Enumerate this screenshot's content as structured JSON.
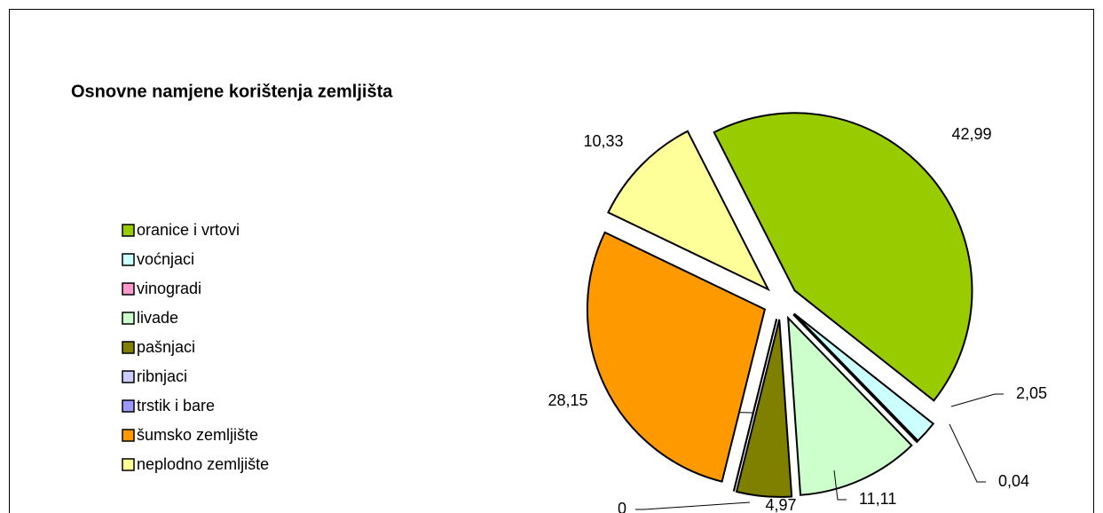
{
  "chart_data": {
    "type": "pie",
    "title": "Osnovne namjene korištenja zemljišta",
    "categories": [
      "oranice  i vrtovi",
      "voćnjaci",
      "vinogradi",
      "livade",
      "pašnjaci",
      "ribnjaci",
      "trstik  i bare",
      "šumsko  zemljište",
      "neplodno zemljište"
    ],
    "values": [
      42.99,
      2.05,
      0.04,
      11.11,
      4.97,
      0,
      0,
      28.15,
      10.33
    ],
    "value_labels": [
      "42,99",
      "2,05",
      "0,04",
      "11,11",
      "4,97",
      "0",
      "0",
      "28,15",
      "10,33"
    ],
    "colors": [
      "#99cc00",
      "#ccffff",
      "#ff99cc",
      "#ccffcc",
      "#808000",
      "#ccccff",
      "#9999ff",
      "#ff9900",
      "#ffff99"
    ],
    "legend": "left"
  }
}
